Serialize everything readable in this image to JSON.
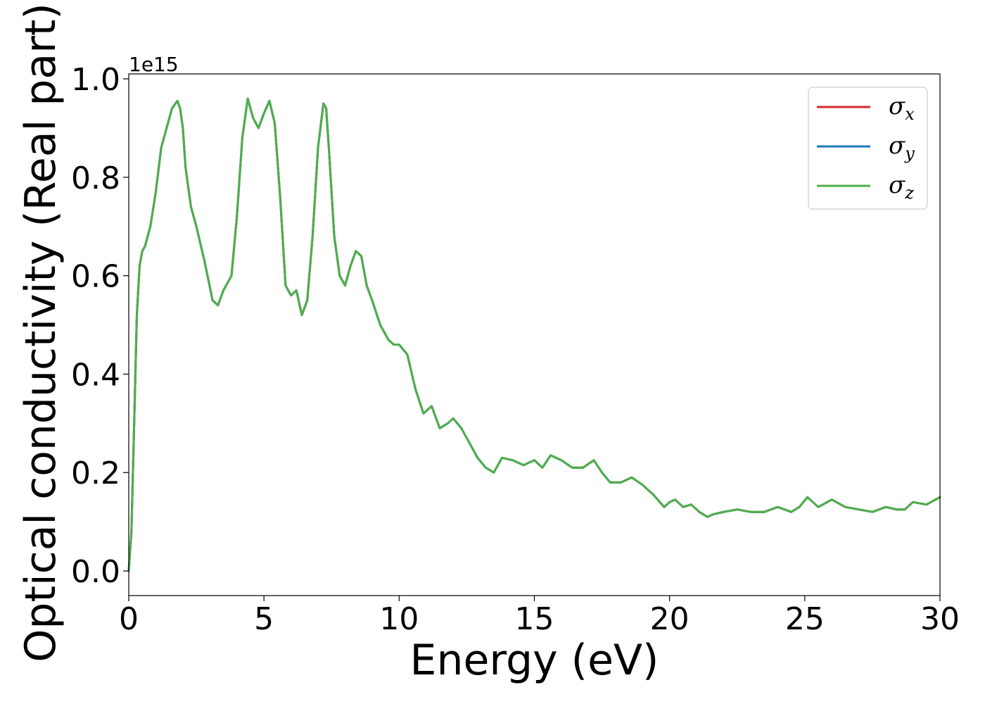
{
  "chart_data": {
    "type": "line",
    "xlabel": "Energy (eV)",
    "ylabel": "Optical conductivity (Real part)",
    "y_offset_label": "1e15",
    "xlim": [
      0,
      30
    ],
    "ylim": [
      -0.05,
      1.01
    ],
    "x_ticks": [
      0,
      5,
      10,
      15,
      20,
      25,
      30
    ],
    "y_ticks": [
      0.0,
      0.2,
      0.4,
      0.6,
      0.8,
      1.0
    ],
    "x_tick_labels": [
      "0",
      "5",
      "10",
      "15",
      "20",
      "25",
      "30"
    ],
    "y_tick_labels": [
      "0.0",
      "0.2",
      "0.4",
      "0.6",
      "0.8",
      "1.0"
    ],
    "grid": false,
    "legend_position": "top-right",
    "series": [
      {
        "name": "σx",
        "symbol": "σ",
        "subscript": "x",
        "color": "#d62728"
      },
      {
        "name": "σy",
        "symbol": "σ",
        "subscript": "y",
        "color": "#1f77b4"
      },
      {
        "name": "σz",
        "symbol": "σ",
        "subscript": "z",
        "color": "#4daf4a"
      }
    ],
    "x": [
      0,
      0.1,
      0.2,
      0.3,
      0.4,
      0.5,
      0.6,
      0.8,
      1.0,
      1.2,
      1.4,
      1.6,
      1.8,
      1.9,
      2.0,
      2.1,
      2.3,
      2.5,
      2.8,
      3.1,
      3.3,
      3.5,
      3.8,
      4.0,
      4.2,
      4.4,
      4.6,
      4.8,
      5.0,
      5.2,
      5.4,
      5.6,
      5.8,
      6.0,
      6.2,
      6.4,
      6.6,
      6.8,
      7.0,
      7.2,
      7.3,
      7.4,
      7.6,
      7.8,
      8.0,
      8.2,
      8.4,
      8.6,
      8.8,
      9.0,
      9.3,
      9.6,
      9.8,
      10.0,
      10.3,
      10.6,
      10.9,
      11.2,
      11.5,
      11.8,
      12.0,
      12.3,
      12.6,
      12.9,
      13.2,
      13.5,
      13.8,
      14.2,
      14.6,
      15.0,
      15.3,
      15.6,
      16.0,
      16.4,
      16.8,
      17.2,
      17.5,
      17.8,
      18.2,
      18.6,
      19.0,
      19.4,
      19.8,
      20.0,
      20.2,
      20.5,
      20.8,
      21.1,
      21.4,
      21.6,
      22.0,
      22.5,
      23.0,
      23.5,
      24.0,
      24.5,
      24.8,
      25.1,
      25.5,
      26.0,
      26.5,
      27.0,
      27.5,
      28.0,
      28.4,
      28.7,
      29.0,
      29.5,
      30.0
    ],
    "y": [
      0.0,
      0.08,
      0.3,
      0.52,
      0.62,
      0.65,
      0.66,
      0.7,
      0.77,
      0.86,
      0.9,
      0.94,
      0.955,
      0.94,
      0.9,
      0.82,
      0.74,
      0.7,
      0.63,
      0.55,
      0.54,
      0.57,
      0.6,
      0.72,
      0.88,
      0.96,
      0.92,
      0.9,
      0.93,
      0.955,
      0.91,
      0.76,
      0.58,
      0.56,
      0.57,
      0.52,
      0.55,
      0.68,
      0.86,
      0.95,
      0.94,
      0.86,
      0.68,
      0.6,
      0.58,
      0.62,
      0.65,
      0.64,
      0.58,
      0.55,
      0.5,
      0.47,
      0.46,
      0.46,
      0.44,
      0.37,
      0.32,
      0.335,
      0.29,
      0.3,
      0.31,
      0.29,
      0.26,
      0.23,
      0.21,
      0.2,
      0.23,
      0.225,
      0.215,
      0.225,
      0.21,
      0.235,
      0.225,
      0.21,
      0.21,
      0.225,
      0.2,
      0.18,
      0.18,
      0.19,
      0.175,
      0.155,
      0.13,
      0.14,
      0.145,
      0.13,
      0.135,
      0.12,
      0.11,
      0.115,
      0.12,
      0.125,
      0.12,
      0.12,
      0.13,
      0.12,
      0.13,
      0.15,
      0.13,
      0.145,
      0.13,
      0.125,
      0.12,
      0.13,
      0.125,
      0.125,
      0.14,
      0.135,
      0.15
    ]
  }
}
